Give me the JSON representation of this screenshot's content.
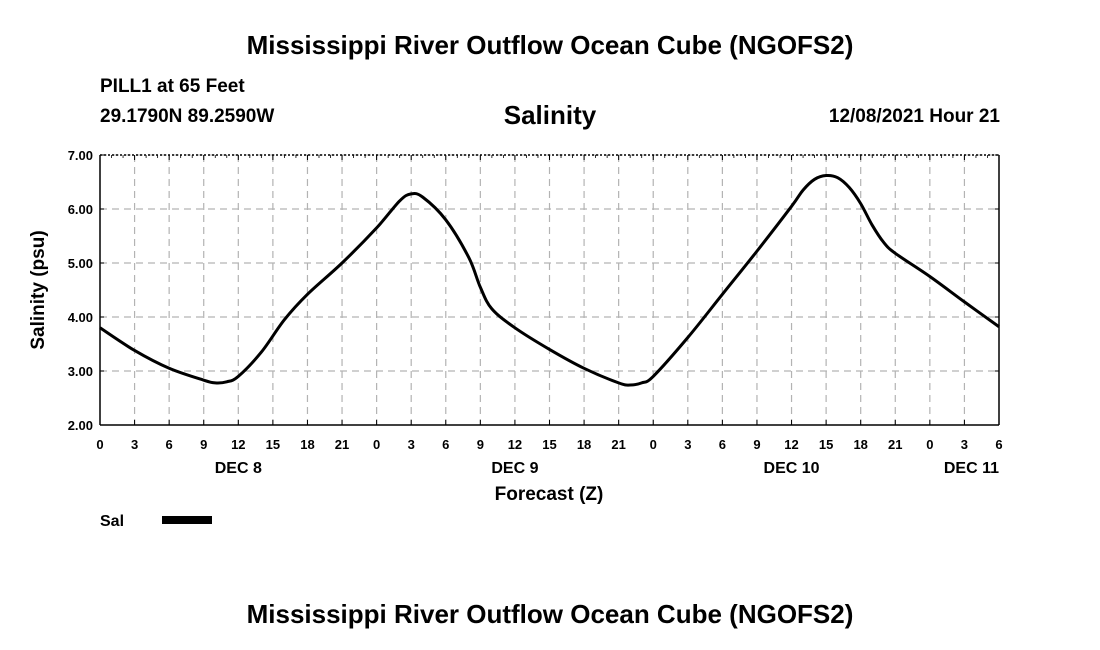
{
  "header": {
    "title": "Mississippi River Outflow Ocean Cube (NGOFS2)",
    "station": "PILL1 at 65 Feet",
    "coordinates": "29.1790N  89.2590W",
    "variable": "Salinity",
    "datetime": "12/08/2021 Hour 21"
  },
  "footer": {
    "title": "Mississippi River Outflow Ocean Cube (NGOFS2)"
  },
  "chart_data": {
    "type": "line",
    "title": "Salinity",
    "xlabel": "Forecast (Z)",
    "ylabel": "Salinity (psu)",
    "xlim": [
      0,
      78
    ],
    "ylim": [
      2.0,
      7.0
    ],
    "yticks": [
      "2.00",
      "3.00",
      "4.00",
      "5.00",
      "6.00",
      "7.00"
    ],
    "xticks": [
      "0",
      "3",
      "6",
      "9",
      "12",
      "15",
      "18",
      "21",
      "0",
      "3",
      "6",
      "9",
      "12",
      "15",
      "18",
      "21",
      "0",
      "3",
      "6",
      "9",
      "12",
      "15",
      "18",
      "21",
      "0",
      "3",
      "6"
    ],
    "day_labels": [
      {
        "label": "DEC 8",
        "hour": 12
      },
      {
        "label": "DEC 9",
        "hour": 36
      },
      {
        "label": "DEC 10",
        "hour": 60
      },
      {
        "label": "DEC 11",
        "hour": 78
      }
    ],
    "legend": [
      {
        "name": "Sal",
        "color": "#000000"
      }
    ],
    "grid": true,
    "series": [
      {
        "name": "Sal",
        "x": [
          0,
          3,
          6,
          9,
          10,
          11,
          12,
          14,
          16,
          18,
          21,
          24,
          26,
          27,
          28,
          30,
          32,
          33,
          34,
          36,
          39,
          42,
          45,
          46,
          47,
          48,
          51,
          54,
          57,
          60,
          61,
          62,
          63,
          64,
          65,
          66,
          67,
          68,
          69,
          72,
          75,
          78
        ],
        "y": [
          3.8,
          3.38,
          3.05,
          2.83,
          2.78,
          2.8,
          2.9,
          3.35,
          3.95,
          4.42,
          5.0,
          5.65,
          6.15,
          6.28,
          6.22,
          5.8,
          5.1,
          4.55,
          4.15,
          3.8,
          3.4,
          3.05,
          2.78,
          2.74,
          2.78,
          2.9,
          3.62,
          4.42,
          5.22,
          6.05,
          6.35,
          6.55,
          6.62,
          6.58,
          6.4,
          6.1,
          5.7,
          5.38,
          5.18,
          4.75,
          4.28,
          3.82
        ]
      }
    ]
  }
}
